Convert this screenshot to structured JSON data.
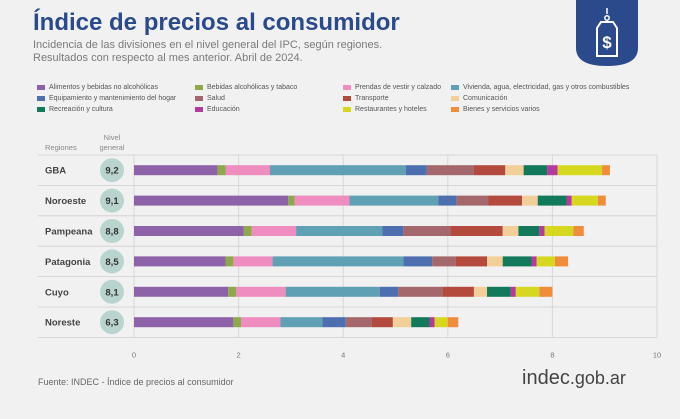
{
  "header": {
    "title": "Índice de precios al consumidor",
    "subtitle_line1": "Incidencia de las divisiones en el nivel general del IPC, según regiones.",
    "subtitle_line2": "Resultados con respecto al mes anterior. Abril de 2024."
  },
  "logo": {
    "icon": "price-tag-dollar-icon",
    "color": "#2b4a8b"
  },
  "table_headers": {
    "regions": "Regiones",
    "level_line1": "Nivel",
    "level_line2": "general"
  },
  "footer": {
    "source": "Fuente: INDEC - Índice de precios al consumidor",
    "brand_main": "indec",
    "brand_domain": ".gob.ar"
  },
  "chart_data": {
    "type": "bar",
    "orientation": "horizontal",
    "stacked": true,
    "xlim": [
      0,
      10
    ],
    "x_ticks": [
      0,
      2,
      4,
      6,
      8,
      10
    ],
    "grid": true,
    "legend_position": "top",
    "categories": [
      "GBA",
      "Noroeste",
      "Pampeana",
      "Patagonia",
      "Cuyo",
      "Noreste"
    ],
    "nivel_general": [
      "9,2",
      "9,1",
      "8,8",
      "8,5",
      "8,1",
      "6,3"
    ],
    "series": [
      {
        "name": "Alimentos y bebidas no alcohólicas",
        "color": "#8e62a8",
        "values": [
          1.6,
          2.95,
          2.1,
          1.75,
          1.8,
          1.9
        ]
      },
      {
        "name": "Bebidas alcohólicas y tabaco",
        "color": "#8fa84a",
        "values": [
          0.15,
          0.12,
          0.15,
          0.15,
          0.15,
          0.15
        ]
      },
      {
        "name": "Prendas de vestir y calzado",
        "color": "#ef8cc0",
        "values": [
          0.85,
          1.05,
          0.85,
          0.75,
          0.95,
          0.75
        ]
      },
      {
        "name": "Vivienda, agua, electricidad, gas y otros combustibles",
        "color": "#5fa0b4",
        "values": [
          2.6,
          1.7,
          1.65,
          2.5,
          1.8,
          0.8
        ]
      },
      {
        "name": "Equipamiento y mantenimiento del hogar",
        "color": "#4d6fb0",
        "values": [
          0.4,
          0.35,
          0.4,
          0.55,
          0.35,
          0.45
        ]
      },
      {
        "name": "Salud",
        "color": "#a4686c",
        "values": [
          0.9,
          0.6,
          0.9,
          0.45,
          0.85,
          0.5
        ]
      },
      {
        "name": "Transporte",
        "color": "#b44a3d",
        "values": [
          0.6,
          0.65,
          1.0,
          0.6,
          0.6,
          0.4
        ]
      },
      {
        "name": "Comunicación",
        "color": "#f2cf98",
        "values": [
          0.35,
          0.3,
          0.3,
          0.3,
          0.25,
          0.35
        ]
      },
      {
        "name": "Recreación y cultura",
        "color": "#127a5a",
        "values": [
          0.45,
          0.55,
          0.4,
          0.55,
          0.45,
          0.35
        ]
      },
      {
        "name": "Educación",
        "color": "#b6399e",
        "values": [
          0.2,
          0.1,
          0.1,
          0.1,
          0.1,
          0.1
        ]
      },
      {
        "name": "Restaurantes y hoteles",
        "color": "#d6d820",
        "values": [
          0.85,
          0.5,
          0.55,
          0.35,
          0.45,
          0.25
        ]
      },
      {
        "name": "Bienes y servicios varios",
        "color": "#ef8d3c",
        "values": [
          0.15,
          0.15,
          0.2,
          0.25,
          0.25,
          0.2
        ]
      }
    ]
  }
}
